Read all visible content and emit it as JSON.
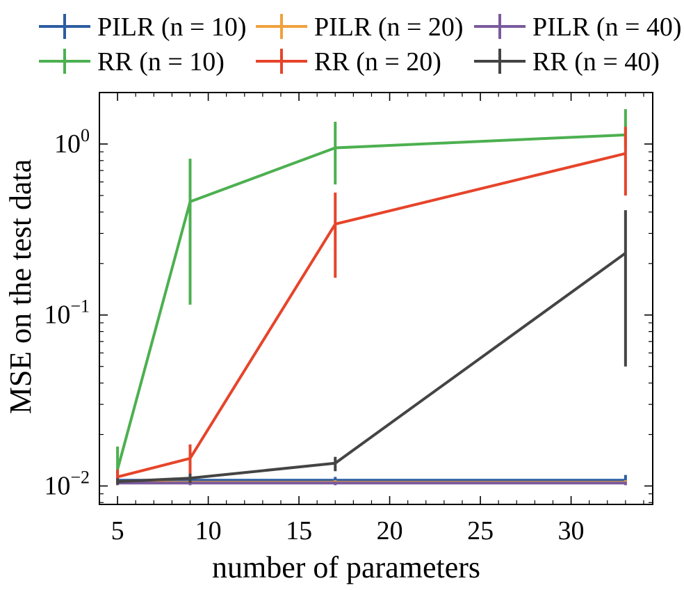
{
  "chart_data": {
    "type": "line",
    "title": "",
    "xlabel": "number of parameters",
    "ylabel": "MSE on the test data",
    "yscale": "log",
    "xlim": [
      4,
      34.5
    ],
    "ylim": [
      0.0078,
      2.0
    ],
    "xticks": [
      5,
      10,
      15,
      20,
      25,
      30
    ],
    "yticks": [
      {
        "value": 0.01,
        "base": "10",
        "exp": "−2"
      },
      {
        "value": 0.1,
        "base": "10",
        "exp": "−1"
      },
      {
        "value": 1,
        "base": "10",
        "exp": "0"
      }
    ],
    "legend_position": "top",
    "x": [
      5,
      9,
      17,
      33
    ],
    "series": [
      {
        "name": "PILR (n = 10)",
        "color": "#2c5da1",
        "values": [
          0.0108,
          0.0108,
          0.0108,
          0.0108
        ],
        "err_low": [
          0.0103,
          0.0103,
          0.0103,
          0.0103
        ],
        "err_high": [
          0.0113,
          0.0113,
          0.0113,
          0.0116
        ]
      },
      {
        "name": "PILR (n = 20)",
        "color": "#f0a03c",
        "values": [
          0.0105,
          0.0105,
          0.0105,
          0.0105
        ],
        "err_low": [
          0.0102,
          0.0102,
          0.0102,
          0.0102
        ],
        "err_high": [
          0.0108,
          0.0108,
          0.0108,
          0.0108
        ]
      },
      {
        "name": "PILR (n = 40)",
        "color": "#7b5a9d",
        "values": [
          0.0104,
          0.0104,
          0.0104,
          0.0104
        ],
        "err_low": [
          0.0101,
          0.0101,
          0.0101,
          0.0101
        ],
        "err_high": [
          0.0106,
          0.0106,
          0.0106,
          0.0106
        ]
      },
      {
        "name": "RR (n = 10)",
        "color": "#4cb050",
        "values": [
          0.0125,
          0.46,
          0.95,
          1.13
        ],
        "err_low": [
          0.0105,
          0.115,
          0.58,
          0.95
        ],
        "err_high": [
          0.017,
          0.82,
          1.35,
          1.6
        ]
      },
      {
        "name": "RR (n = 20)",
        "color": "#e6442a",
        "values": [
          0.0113,
          0.0145,
          0.34,
          0.88
        ],
        "err_low": [
          0.0102,
          0.0108,
          0.165,
          0.5
        ],
        "err_high": [
          0.0125,
          0.0175,
          0.52,
          1.26
        ]
      },
      {
        "name": "RR (n = 40)",
        "color": "#444444",
        "values": [
          0.0106,
          0.0111,
          0.0136,
          0.23
        ],
        "err_low": [
          0.0102,
          0.0104,
          0.0122,
          0.05
        ],
        "err_high": [
          0.0111,
          0.0118,
          0.0148,
          0.41
        ]
      }
    ]
  }
}
